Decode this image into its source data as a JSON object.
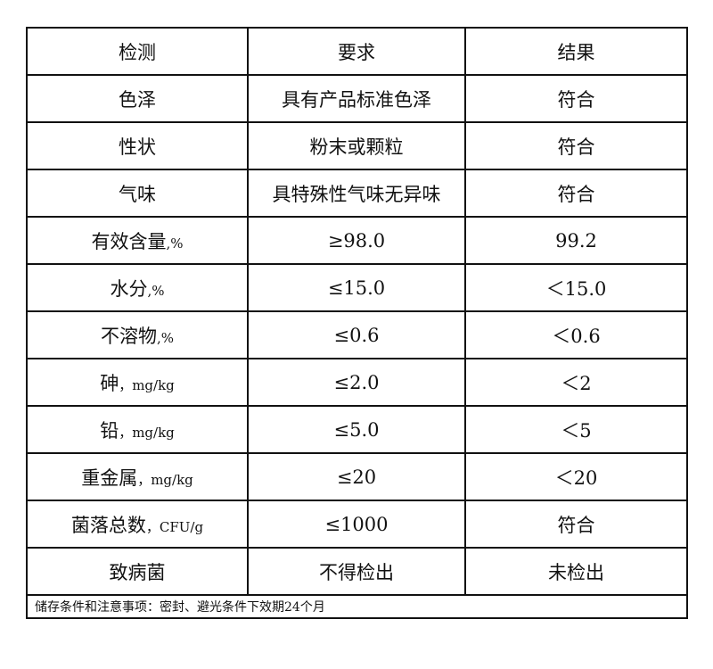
{
  "headers": [
    "检测",
    "要求",
    "结果"
  ],
  "rows": [
    {
      "item": "色泽",
      "unit": "",
      "requirement": "具有产品标准色泽",
      "result": "符合"
    },
    {
      "item": "性状",
      "unit": "",
      "requirement": "粉末或颗粒",
      "result": "符合"
    },
    {
      "item": "气味",
      "unit": "",
      "requirement": "具特殊性气味无异味",
      "result": "符合"
    },
    {
      "item": "有效含量",
      "unit": ",%",
      "requirement": "≥98.0",
      "result": "99.2"
    },
    {
      "item": "水分",
      "unit": ",%",
      "requirement": "≤15.0",
      "result": "＜15.0"
    },
    {
      "item": "不溶物",
      "unit": ",%",
      "requirement": "≤0.6",
      "result": "＜0.6"
    },
    {
      "item": "砷",
      "unit": "，mg/kg",
      "requirement": "≤2.0",
      "result": "＜2"
    },
    {
      "item": "铅",
      "unit": "，mg/kg",
      "requirement": "≤5.0",
      "result": "＜5"
    },
    {
      "item": "重金属",
      "unit": "，mg/kg",
      "requirement": "≤20",
      "result": "＜20"
    },
    {
      "item": "菌落总数",
      "unit": "，CFU/g",
      "requirement": "≤1000",
      "result": "符合"
    },
    {
      "item": "致病菌",
      "unit": "",
      "requirement": "不得检出",
      "result": "未检出"
    }
  ],
  "note": "储存条件和注意事项：密封、避光条件下效期24个月"
}
